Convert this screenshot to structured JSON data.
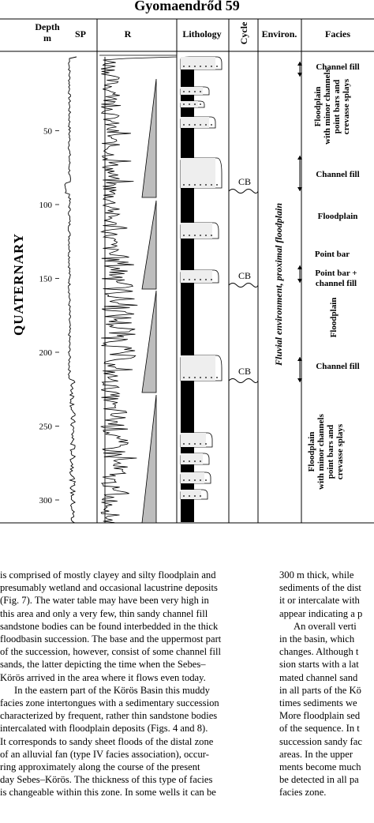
{
  "figure": {
    "title": "Gyomaendrőd 59",
    "headers": {
      "depth": [
        "Depth",
        "m"
      ],
      "sp": "SP",
      "r": "R",
      "lithology": "Lithology",
      "cycle": "Cycle",
      "environ": "Environ.",
      "facies": "Facies"
    },
    "period": "QUATERNARY",
    "depth_ticks": [
      "50",
      "100",
      "150",
      "200",
      "250",
      "300"
    ],
    "environment": "Fluvial environment,  proximal floodplain",
    "cycle_labels": [
      "CB",
      "CB",
      "CB"
    ],
    "facies": {
      "channel_fill_1": "Channel fill",
      "floodplain_1": [
        "Floodplain",
        "with minor channels",
        "point bars and",
        "crevasse splays"
      ],
      "channel_fill_2": "Channel fill",
      "floodplain_2": "Floodplain",
      "point_bar": "Point bar",
      "point_bar_channel": [
        "Point bar +",
        "channel fill"
      ],
      "floodplain_3": "Floodplain",
      "channel_fill_3": "Channel fill",
      "floodplain_4": [
        "Floodplain",
        "with minor channels",
        "point bars and",
        "crevasse splays"
      ]
    }
  },
  "text": {
    "left": [
      [
        "is comprised of mostly clayey and silty floodplain and",
        "presumably wetland and occasional lacustrine deposits",
        "(Fig. 7). The water table may have been very high in",
        "this area and only a very few, thin sandy channel fill",
        "sandstone bodies can be found interbedded in the thick",
        "floodbasin succession. The base and the uppermost part",
        "of the succession, however, consist of some channel fill",
        "sands, the latter depicting the time when the Sebes–",
        "Körös arrived in the area where it flows even today."
      ],
      [
        "In the eastern part of the Körös Basin this muddy",
        "facies zone intertongues with a sedimentary succession",
        "characterized by frequent, rather thin sandstone bodies",
        "intercalated with floodplain deposits (Figs. 4 and 8).",
        "It corresponds to sandy sheet floods of the distal zone",
        "of an alluvial fan (type IV facies association), occur-",
        "ring approximately along the course of the present",
        "day Sebes–Körös. The thickness of this type of facies",
        "is changeable within this zone. In some wells it can be"
      ]
    ],
    "right": [
      [
        "300 m thick, while",
        "sediments of the dist",
        "it or intercalate with",
        "appear indicating a p"
      ],
      [
        "An overall verti",
        "in the basin, which",
        "changes. Although t",
        "sion starts with a lat",
        "mated channel sand",
        "in all parts of the Kö",
        "times sediments we",
        "More floodplain sed",
        "of the sequence. In t",
        "succession sandy fac",
        "areas. In the upper",
        "ments become much",
        "be detected in all pa",
        "facies zone."
      ]
    ]
  }
}
